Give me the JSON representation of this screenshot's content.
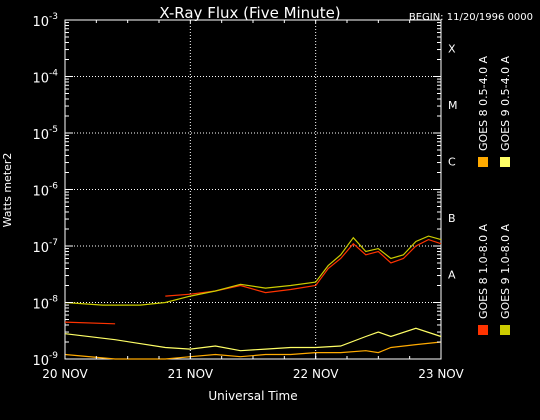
{
  "chart_data": {
    "type": "line",
    "title": "X-Ray Flux (Five Minute)",
    "begin_label": "BEGIN: 11/20/1996 0000",
    "xlabel": "Universal Time",
    "ylabel": "Watts meter2",
    "x_ticks": [
      "20 NOV",
      "21 NOV",
      "22 NOV",
      "23 NOV"
    ],
    "x_range_days": [
      0,
      3
    ],
    "y_scale": "log",
    "y_range": [
      1e-09,
      0.001
    ],
    "y_ticks": [
      {
        "base": "10",
        "exp": "-9"
      },
      {
        "base": "10",
        "exp": "-8"
      },
      {
        "base": "10",
        "exp": "-7"
      },
      {
        "base": "10",
        "exp": "-6"
      },
      {
        "base": "10",
        "exp": "-5"
      },
      {
        "base": "10",
        "exp": "-4"
      },
      {
        "base": "10",
        "exp": "-3"
      }
    ],
    "flare_classes": [
      {
        "label": "A",
        "value": 1e-08
      },
      {
        "label": "B",
        "value": 1e-07
      },
      {
        "label": "C",
        "value": 1e-06
      },
      {
        "label": "M",
        "value": 1e-05
      },
      {
        "label": "X",
        "value": 0.0001
      }
    ],
    "grid": "dotted",
    "legend_placement": "right (rotated)",
    "series": [
      {
        "name": "GOES 8 1.0-8.0 A",
        "color": "#ff3300",
        "x": [
          0.0,
          0.4,
          0.4,
          0.8,
          1.0,
          1.2,
          1.4,
          1.6,
          1.8,
          2.0,
          2.1,
          2.2,
          2.3,
          2.4,
          2.5,
          2.6,
          2.7,
          2.8,
          2.9,
          3.0
        ],
        "y": [
          4.5e-09,
          4.2e-09,
          null,
          1.3e-08,
          1.4e-08,
          1.6e-08,
          2e-08,
          1.5e-08,
          1.7e-08,
          2e-08,
          4e-08,
          6e-08,
          1.1e-07,
          7e-08,
          8e-08,
          5e-08,
          6e-08,
          1e-07,
          1.3e-07,
          1.1e-07
        ]
      },
      {
        "name": "GOES 8 0.5-4.0 A",
        "color": "#ffaa00",
        "x": [
          0.0,
          0.4,
          0.8,
          1.0,
          1.2,
          1.4,
          1.6,
          1.8,
          2.0,
          2.2,
          2.4,
          2.5,
          2.6,
          2.8,
          3.0
        ],
        "y": [
          1.2e-09,
          1e-09,
          1e-09,
          1.1e-09,
          1.2e-09,
          1.1e-09,
          1.2e-09,
          1.2e-09,
          1.3e-09,
          1.3e-09,
          1.4e-09,
          1.3e-09,
          1.6e-09,
          1.8e-09,
          2e-09
        ]
      },
      {
        "name": "GOES 9 0.5-4.0 A",
        "color": "#ffff66",
        "x": [
          0.0,
          0.4,
          0.8,
          1.0,
          1.2,
          1.4,
          1.6,
          1.8,
          2.0,
          2.2,
          2.4,
          2.5,
          2.6,
          2.8,
          3.0
        ],
        "y": [
          2.8e-09,
          2.2e-09,
          1.6e-09,
          1.5e-09,
          1.7e-09,
          1.4e-09,
          1.5e-09,
          1.6e-09,
          1.6e-09,
          1.7e-09,
          2.5e-09,
          3e-09,
          2.5e-09,
          3.5e-09,
          2.5e-09
        ]
      },
      {
        "name": "GOES 9 1.0-8.0 A",
        "color": "#cccc00",
        "x": [
          0.0,
          0.3,
          0.6,
          0.8,
          1.0,
          1.2,
          1.4,
          1.6,
          1.8,
          2.0,
          2.1,
          2.2,
          2.3,
          2.4,
          2.5,
          2.6,
          2.7,
          2.8,
          2.9,
          3.0
        ],
        "y": [
          1e-08,
          9e-09,
          9e-09,
          1e-08,
          1.3e-08,
          1.6e-08,
          2.1e-08,
          1.8e-08,
          2e-08,
          2.3e-08,
          4.5e-08,
          7e-08,
          1.4e-07,
          8e-08,
          9e-08,
          6e-08,
          7e-08,
          1.2e-07,
          1.5e-07,
          1.3e-07
        ]
      }
    ]
  }
}
